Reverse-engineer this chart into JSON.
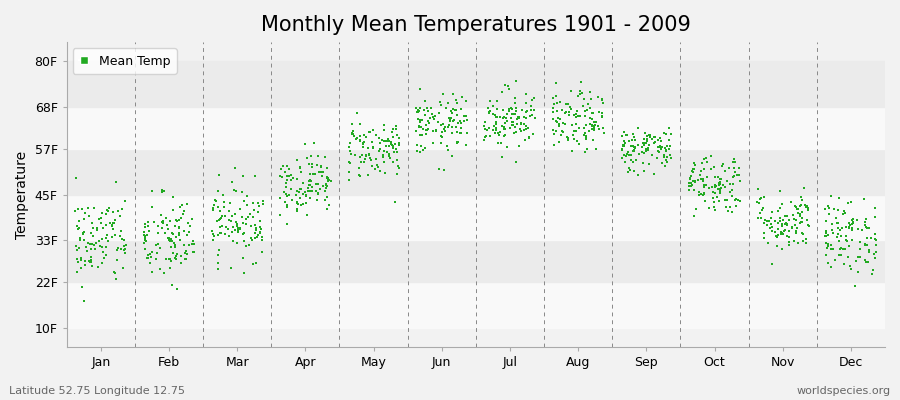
{
  "title": "Monthly Mean Temperatures 1901 - 2009",
  "ylabel": "Temperature",
  "xlabel": "",
  "months": [
    "Jan",
    "Feb",
    "Mar",
    "Apr",
    "May",
    "Jun",
    "Jul",
    "Aug",
    "Sep",
    "Oct",
    "Nov",
    "Dec"
  ],
  "ytick_labels": [
    "10F",
    "22F",
    "33F",
    "45F",
    "57F",
    "68F",
    "80F"
  ],
  "ytick_values": [
    10,
    22,
    33,
    45,
    57,
    68,
    80
  ],
  "ylim": [
    5,
    85
  ],
  "xlim": [
    0,
    12
  ],
  "dot_color": "#22aa22",
  "dot_size": 2.5,
  "bg_color": "#f2f2f2",
  "stripe_color_light": "#ebebeb",
  "stripe_color_white": "#f9f9f9",
  "grid_color": "#888888",
  "legend_label": "Mean Temp",
  "footnote_left": "Latitude 52.75 Longitude 12.75",
  "footnote_right": "worldspecies.org",
  "title_fontsize": 15,
  "axis_fontsize": 10,
  "tick_fontsize": 9,
  "footnote_fontsize": 8,
  "monthly_mean_F": [
    33,
    33,
    38,
    48,
    57,
    63,
    65,
    64,
    57,
    48,
    38,
    34
  ],
  "monthly_std_F": [
    6,
    6,
    5,
    4,
    4,
    4,
    4,
    4,
    3,
    4,
    4,
    5
  ],
  "n_years": 109,
  "seed": 42
}
